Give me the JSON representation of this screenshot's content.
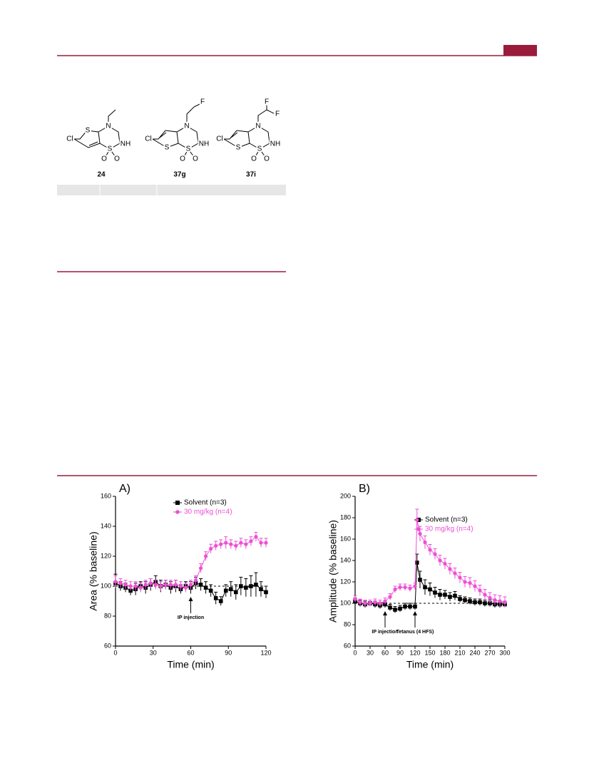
{
  "compounds": [
    {
      "label": "24",
      "atoms": [
        "Cl",
        "S",
        "N",
        "NH",
        "S",
        "O",
        "O"
      ]
    },
    {
      "label": "37g",
      "atoms": [
        "Cl",
        "S",
        "N",
        "NH",
        "S",
        "O",
        "O",
        "F"
      ]
    },
    {
      "label": "37i",
      "atoms": [
        "Cl",
        "S",
        "N",
        "NH",
        "S",
        "O",
        "O",
        "F",
        "F"
      ]
    }
  ],
  "chart_data": [
    {
      "type": "line",
      "title": "A)",
      "x_label": "Time (min)",
      "y_label": "Area (% baseline)",
      "x": [
        0,
        4,
        8,
        12,
        16,
        20,
        24,
        28,
        32,
        36,
        40,
        44,
        48,
        52,
        56,
        60,
        64,
        68,
        72,
        76,
        80,
        84,
        88,
        92,
        96,
        100,
        104,
        108,
        112,
        116,
        120
      ],
      "xlim": [
        0,
        120
      ],
      "ylim": [
        60,
        160
      ],
      "xticks": [
        0,
        30,
        60,
        90,
        120
      ],
      "yticks": [
        60,
        80,
        100,
        120,
        140,
        160
      ],
      "reference_line": 100,
      "series": [
        {
          "name": "Solvent (n=3)",
          "color": "#000000",
          "marker": "square",
          "values": [
            102,
            100,
            99,
            97,
            98,
            100,
            99,
            101,
            103,
            100,
            101,
            99,
            100,
            98,
            100,
            99,
            102,
            101,
            99,
            97,
            92,
            90,
            97,
            98,
            96,
            100,
            99,
            100,
            101,
            98,
            96
          ],
          "errors": [
            6,
            3,
            3,
            3,
            4,
            3,
            4,
            4,
            4,
            4,
            3,
            4,
            4,
            3,
            3,
            4,
            4,
            4,
            4,
            4,
            4,
            3,
            4,
            5,
            5,
            6,
            6,
            7,
            8,
            5,
            4
          ]
        },
        {
          "name": "30 mg/kg (n=4)",
          "color": "#ee4fd6",
          "marker": "circle",
          "values": [
            103,
            102,
            101,
            100,
            100,
            99,
            101,
            102,
            101,
            100,
            101,
            101,
            101,
            100,
            99,
            101,
            104,
            112,
            120,
            125,
            127,
            128,
            129,
            128,
            127,
            129,
            128,
            130,
            133,
            129,
            129
          ],
          "errors": [
            4,
            3,
            3,
            3,
            3,
            3,
            3,
            3,
            3,
            3,
            3,
            3,
            3,
            3,
            3,
            3,
            3,
            3,
            3,
            3,
            3,
            3,
            4,
            3,
            3,
            3,
            3,
            3,
            3,
            3,
            3
          ]
        }
      ],
      "annotations": [
        {
          "text": "IP injection",
          "x": 60
        }
      ]
    },
    {
      "type": "line",
      "title": "B)",
      "x_label": "Time (min)",
      "y_label": "Amplitude (% baseline)",
      "x": [
        0,
        10,
        20,
        30,
        40,
        50,
        60,
        70,
        80,
        90,
        100,
        110,
        120,
        124,
        130,
        140,
        150,
        160,
        170,
        180,
        190,
        200,
        210,
        220,
        230,
        240,
        250,
        260,
        270,
        280,
        290,
        300
      ],
      "xlim": [
        0,
        300
      ],
      "ylim": [
        60,
        200
      ],
      "xticks": [
        0,
        30,
        60,
        90,
        120,
        150,
        180,
        210,
        240,
        270,
        300
      ],
      "yticks": [
        60,
        80,
        100,
        120,
        140,
        160,
        180,
        200
      ],
      "reference_line": 100,
      "series": [
        {
          "name": "Solvent (n=3)",
          "color": "#000000",
          "marker": "square",
          "values": [
            102,
            100,
            99,
            100,
            99,
            98,
            99,
            96,
            94,
            95,
            97,
            97,
            97,
            138,
            122,
            115,
            113,
            110,
            108,
            108,
            106,
            107,
            104,
            103,
            102,
            101,
            101,
            100,
            100,
            99,
            99,
            99
          ],
          "errors": [
            3,
            3,
            3,
            3,
            3,
            3,
            3,
            3,
            3,
            3,
            3,
            3,
            3,
            8,
            8,
            7,
            6,
            5,
            5,
            4,
            4,
            4,
            3,
            3,
            3,
            3,
            3,
            3,
            3,
            3,
            3,
            3
          ]
        },
        {
          "name": "30 mg/kg (n=4)",
          "color": "#ee4fd6",
          "marker": "circle",
          "values": [
            104,
            101,
            100,
            100,
            101,
            100,
            102,
            106,
            113,
            115,
            115,
            114,
            116,
            178,
            165,
            157,
            150,
            146,
            140,
            137,
            132,
            128,
            124,
            120,
            119,
            116,
            112,
            108,
            105,
            103,
            102,
            101
          ],
          "errors": [
            3,
            3,
            3,
            3,
            3,
            3,
            3,
            3,
            3,
            3,
            3,
            3,
            3,
            10,
            7,
            6,
            5,
            5,
            5,
            5,
            5,
            5,
            5,
            5,
            5,
            5,
            5,
            5,
            5,
            5,
            5,
            5
          ]
        }
      ],
      "annotations": [
        {
          "text": "IP injection",
          "x": 60
        },
        {
          "text": "Tetanus (4 HFS)",
          "x": 120
        }
      ]
    }
  ]
}
